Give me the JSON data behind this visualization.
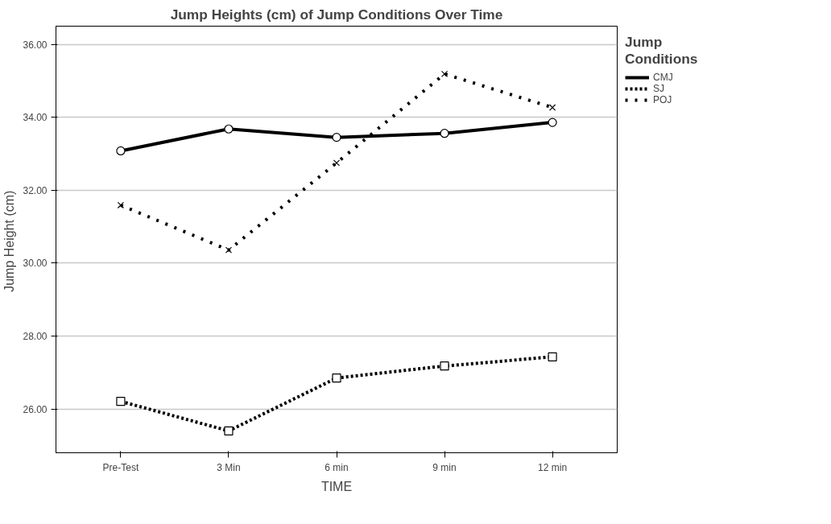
{
  "chart_data": {
    "type": "line",
    "title": "Jump Heights (cm) of Jump Conditions Over Time",
    "xlabel": "TIME",
    "ylabel": "Jump Height  (cm)",
    "legend_title": "Jump\nConditions",
    "categories": [
      "Pre-Test",
      "3 Min",
      "6 min",
      "9 min",
      "12 min"
    ],
    "series": [
      {
        "name": "CMJ",
        "color": "#000000",
        "marker": "circle",
        "line_style": "solid",
        "values": [
          33.08,
          33.68,
          33.45,
          33.56,
          33.86
        ]
      },
      {
        "name": "SJ",
        "color": "#000000",
        "marker": "square",
        "line_style": "dotted",
        "values": [
          26.21,
          25.4,
          26.85,
          27.18,
          27.43
        ]
      },
      {
        "name": "POJ",
        "color": "#000000",
        "marker": "cross",
        "line_style": "dotted",
        "values": [
          31.59,
          30.36,
          32.75,
          35.19,
          34.27
        ]
      }
    ],
    "ylim": [
      24.8,
      36.5
    ],
    "yticks": [
      {
        "value": 26,
        "label": "26.00"
      },
      {
        "value": 28,
        "label": "28.00"
      },
      {
        "value": 30,
        "label": "30.00"
      },
      {
        "value": 32,
        "label": "32.00"
      },
      {
        "value": 34,
        "label": "34.00"
      },
      {
        "value": 36,
        "label": "36.00"
      }
    ],
    "grid": "y",
    "legend": "right"
  }
}
